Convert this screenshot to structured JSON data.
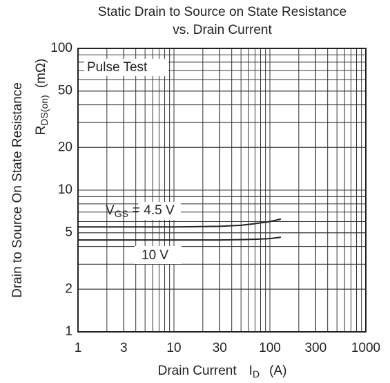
{
  "chart_data": {
    "type": "line",
    "title": [
      "Static Drain to Source on State Resistance",
      "vs. Drain Current"
    ],
    "y_label": "Drain to Source On State Resistance",
    "y_unit": {
      "symbol": "R",
      "subscript": "DS(on)",
      "unit": "(mΩ)"
    },
    "x_label": {
      "text": "Drain Current",
      "symbol": "I",
      "subscript": "D",
      "unit": "(A)"
    },
    "xlog": true,
    "ylog": true,
    "grid": true,
    "xlim": [
      1,
      1000
    ],
    "ylim": [
      1,
      100
    ],
    "xticks": [
      1,
      3,
      10,
      30,
      100,
      300,
      1000
    ],
    "yticks": [
      1,
      2,
      5,
      10,
      20,
      50,
      100
    ],
    "x": [
      1,
      10,
      30,
      50,
      70,
      100,
      130
    ],
    "series": [
      {
        "name": {
          "symbol": "V",
          "subscript": "GS",
          "rest": "= 4.5 V"
        },
        "color": "#222222",
        "values": [
          5.5,
          5.5,
          5.55,
          5.65,
          5.8,
          6.0,
          6.25
        ]
      },
      {
        "name": "10 V",
        "color": "#222222",
        "values": [
          4.45,
          4.45,
          4.45,
          4.47,
          4.5,
          4.55,
          4.65
        ]
      }
    ],
    "annotations": [
      "Pulse Test"
    ]
  }
}
